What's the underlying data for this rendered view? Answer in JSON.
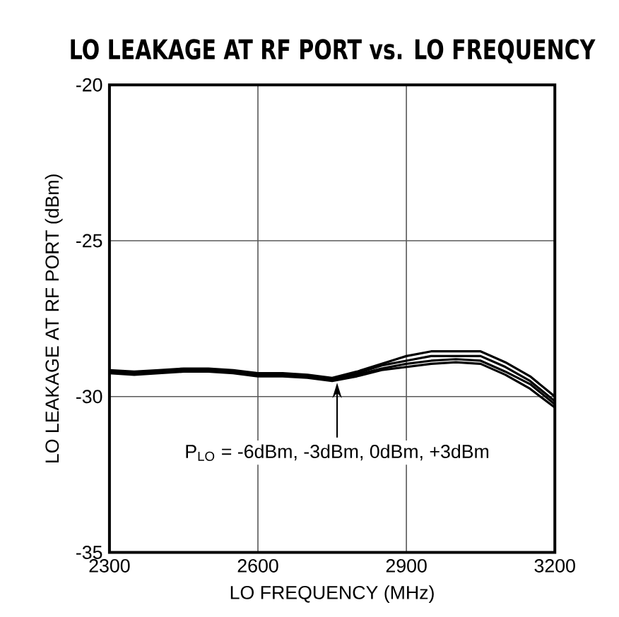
{
  "chart_data": {
    "type": "line",
    "title": "LO LEAKAGE AT RF PORT vs. LO FREQUENCY",
    "xlabel": "LO FREQUENCY (MHz)",
    "ylabel": "LO LEAKAGE AT RF PORT (dBm)",
    "x": [
      2300,
      2350,
      2400,
      2450,
      2500,
      2550,
      2600,
      2650,
      2700,
      2750,
      2800,
      2850,
      2900,
      2950,
      3000,
      3050,
      3100,
      3150,
      3200
    ],
    "series": [
      {
        "color": "#000000",
        "values": [
          -29.25,
          -29.3,
          -29.25,
          -29.2,
          -29.2,
          -29.25,
          -29.35,
          -29.35,
          -29.4,
          -29.5,
          -29.35,
          -29.15,
          -29.05,
          -28.95,
          -28.9,
          -28.95,
          -29.3,
          -29.75,
          -30.35
        ]
      },
      {
        "color": "#000000",
        "values": [
          -29.2,
          -29.25,
          -29.2,
          -29.15,
          -29.15,
          -29.2,
          -29.3,
          -29.3,
          -29.35,
          -29.45,
          -29.3,
          -29.1,
          -28.95,
          -28.85,
          -28.8,
          -28.85,
          -29.2,
          -29.6,
          -30.25
        ]
      },
      {
        "color": "#000000",
        "values": [
          -29.2,
          -29.25,
          -29.2,
          -29.15,
          -29.15,
          -29.2,
          -29.3,
          -29.3,
          -29.35,
          -29.45,
          -29.25,
          -29.0,
          -28.85,
          -28.7,
          -28.7,
          -28.7,
          -29.05,
          -29.5,
          -30.15
        ]
      },
      {
        "color": "#000000",
        "values": [
          -29.15,
          -29.2,
          -29.15,
          -29.1,
          -29.1,
          -29.15,
          -29.25,
          -29.25,
          -29.3,
          -29.4,
          -29.2,
          -28.95,
          -28.7,
          -28.55,
          -28.55,
          -28.55,
          -28.9,
          -29.35,
          -30.0
        ]
      }
    ],
    "xlim": [
      2300,
      3200
    ],
    "xticks": [
      2300,
      2600,
      2900,
      3200
    ],
    "ylim": [
      -35,
      -20
    ],
    "yticks": [
      -35,
      -30,
      -25,
      -20
    ],
    "grid": true,
    "marker": "none",
    "line_style": "solid",
    "annotations": [
      {
        "text": "P$_{LO}$ = -6dBm, -3dBm, 0dBm, +3dBm",
        "x": 2760,
        "y": -29.5
      }
    ]
  }
}
